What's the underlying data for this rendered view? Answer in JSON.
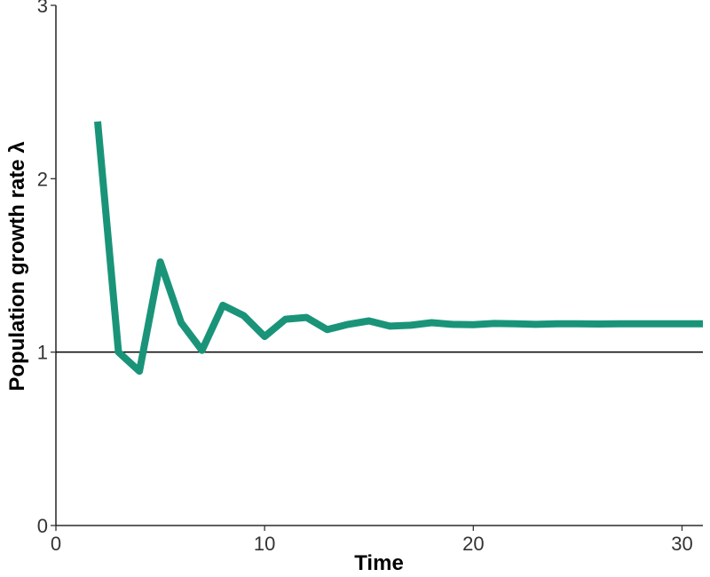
{
  "chart_data": {
    "type": "line",
    "xlabel": "Time",
    "ylabel": "Population growth rate λ",
    "xlim": [
      0,
      31
    ],
    "ylim": [
      0,
      3
    ],
    "xticks": [
      0,
      10,
      20,
      30
    ],
    "yticks": [
      0,
      1,
      2,
      3
    ],
    "grid": false,
    "reference_line": {
      "y": 1,
      "color": "#000000"
    },
    "series": [
      {
        "color": "#1a9479",
        "x": [
          2,
          3,
          4,
          5,
          6,
          7,
          8,
          9,
          10,
          11,
          12,
          13,
          14,
          15,
          16,
          17,
          18,
          19,
          20,
          21,
          22,
          23,
          24,
          25,
          26,
          27,
          28,
          29,
          30,
          31
        ],
        "y": [
          2.33,
          1.0,
          0.89,
          1.52,
          1.17,
          1.01,
          1.27,
          1.21,
          1.09,
          1.19,
          1.2,
          1.13,
          1.16,
          1.18,
          1.15,
          1.155,
          1.17,
          1.16,
          1.158,
          1.165,
          1.163,
          1.16,
          1.163,
          1.163,
          1.162,
          1.163,
          1.163,
          1.163,
          1.163,
          1.163
        ]
      }
    ]
  }
}
